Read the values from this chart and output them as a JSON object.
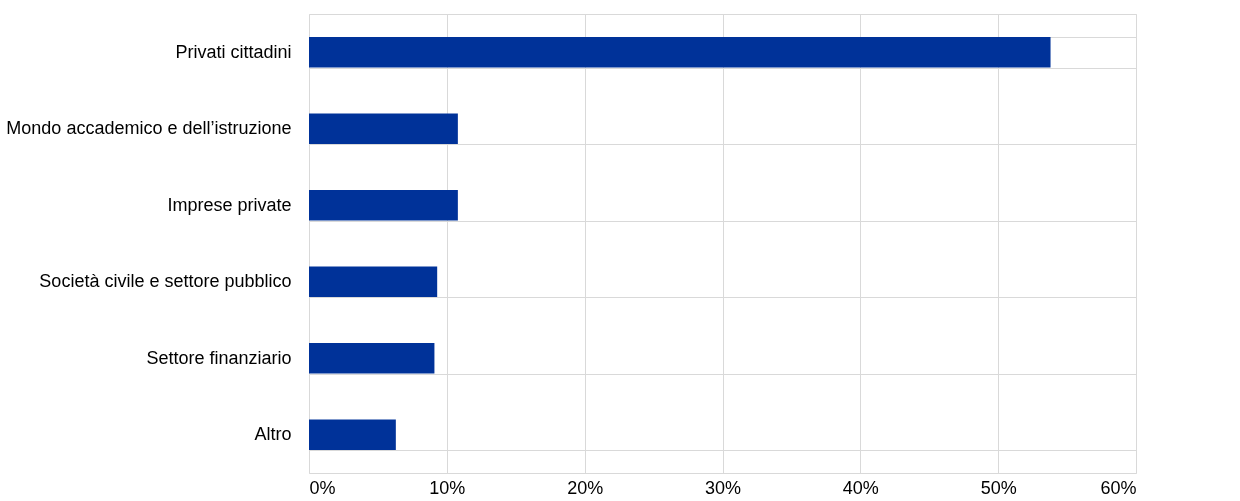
{
  "chart_data": {
    "type": "bar",
    "orientation": "horizontal",
    "categories": [
      "Privati cittadini",
      "Mondo accademico e dell’istruzione",
      "Imprese private",
      "Società civile e settore pubblico",
      "Settore finanziario",
      "Altro"
    ],
    "values": [
      53.8,
      10.8,
      10.8,
      9.3,
      9.1,
      6.3
    ],
    "color": "#003299",
    "xlim": [
      0,
      60
    ],
    "xticks": [
      {
        "value": 0,
        "label": "0%"
      },
      {
        "value": 10,
        "label": "10%"
      },
      {
        "value": 20,
        "label": "20%"
      },
      {
        "value": 30,
        "label": "30%"
      },
      {
        "value": 40,
        "label": "40%"
      },
      {
        "value": 50,
        "label": "50%"
      },
      {
        "value": 60,
        "label": "60%"
      }
    ],
    "grid": true
  }
}
